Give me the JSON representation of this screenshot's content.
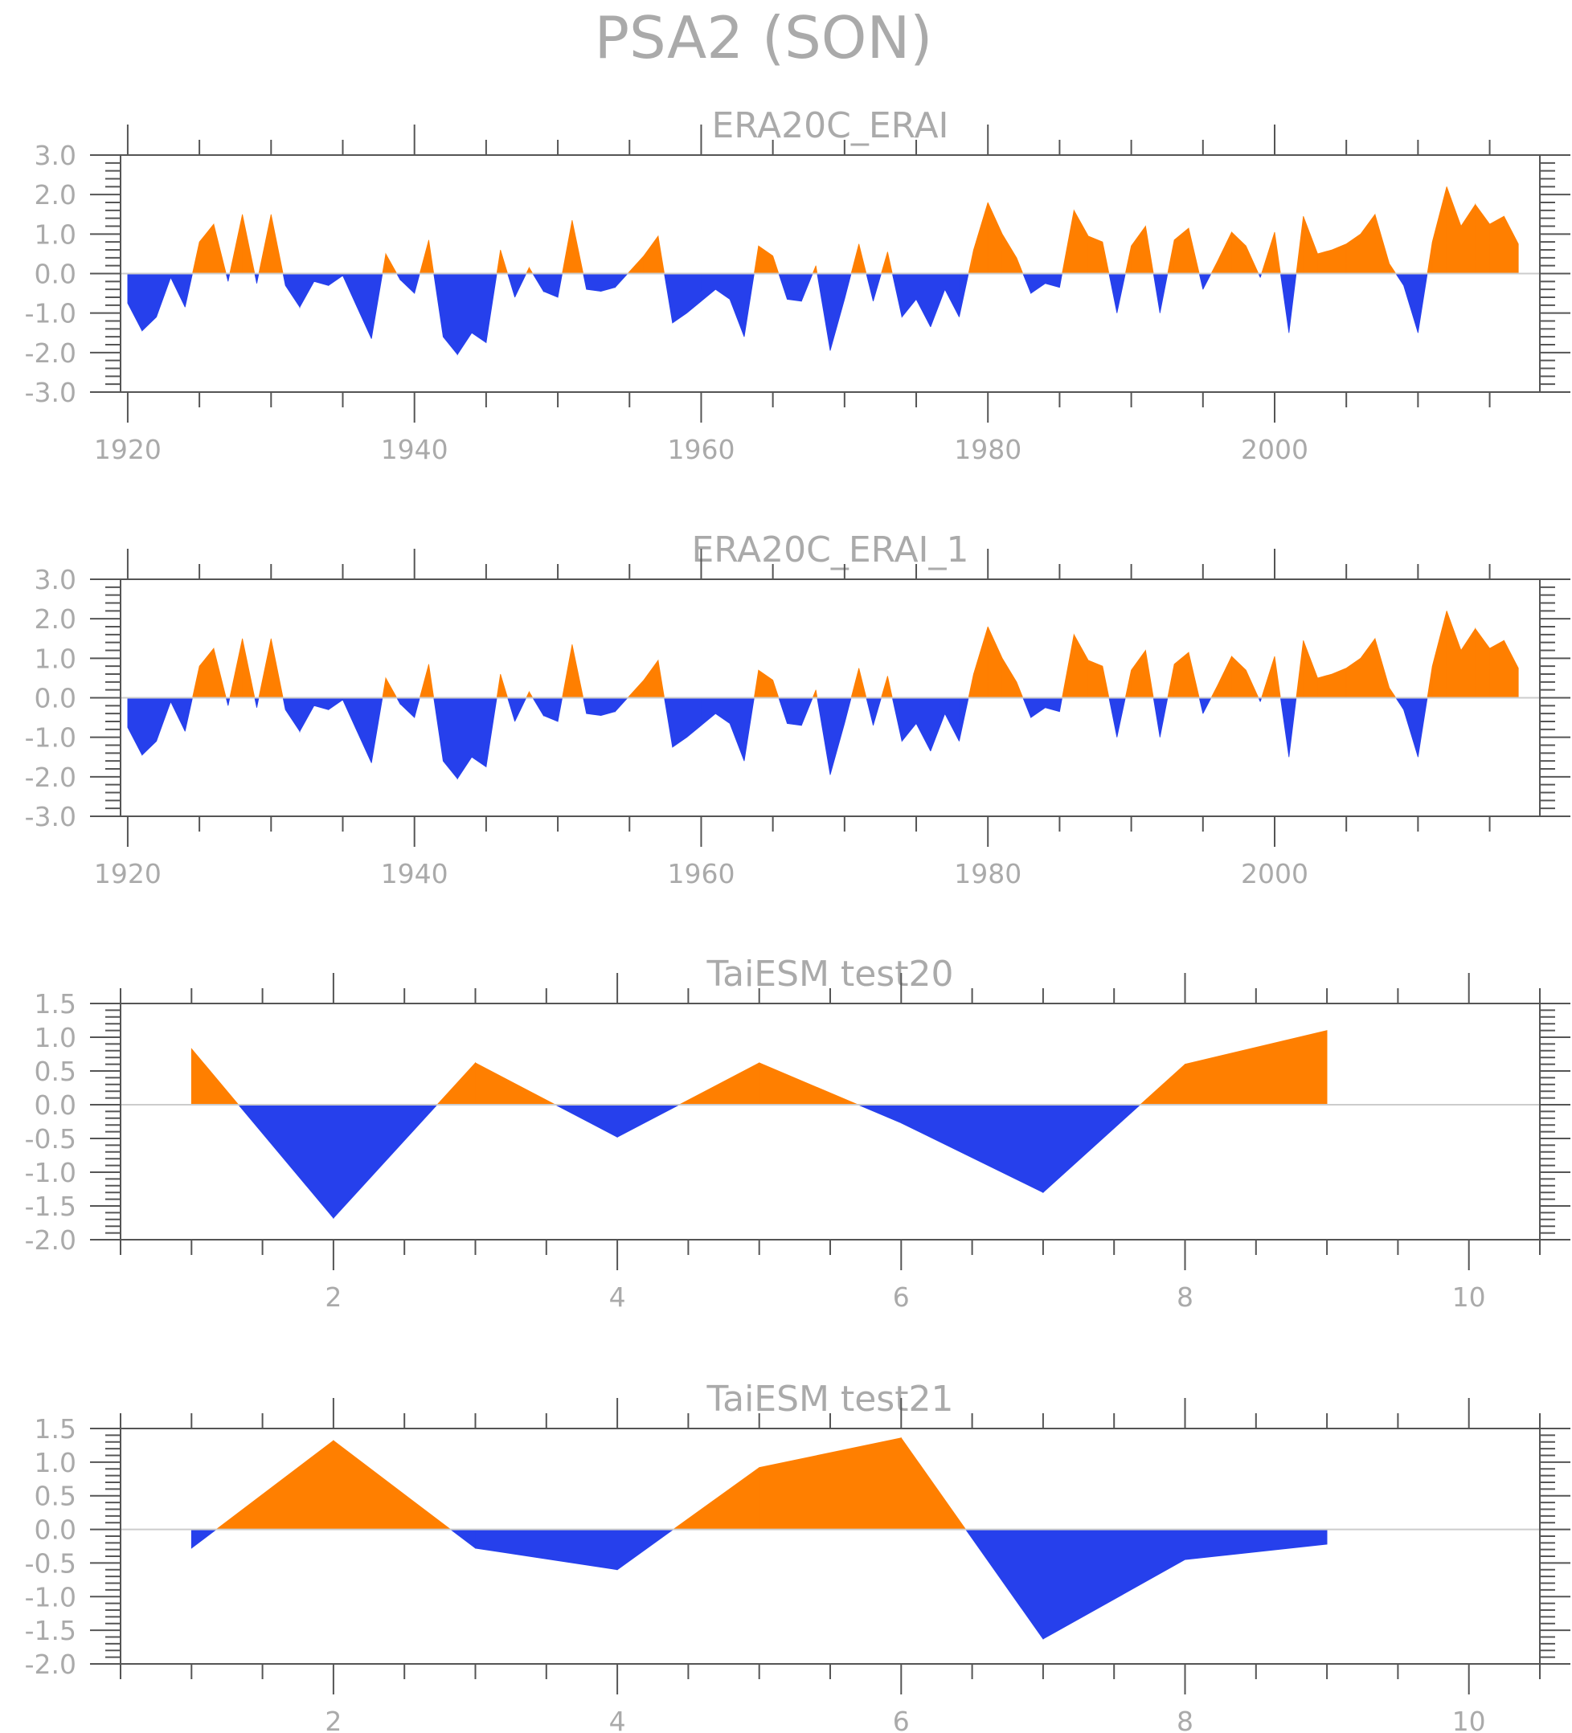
{
  "title": "PSA2 (SON)",
  "colors": {
    "positive": "#ff7f00",
    "negative": "#2640ec",
    "axis_text": "#aaaaaa",
    "frame": "#555555",
    "zero_line": "#cccccc"
  },
  "chart_data": [
    {
      "type": "area",
      "title": "ERA20C_ERAI",
      "xlim": [
        1919.5,
        2018.5
      ],
      "ylim": [
        -3.0,
        3.0
      ],
      "x_ticks": [
        1920,
        1940,
        1960,
        1980,
        2000
      ],
      "x_tick_labels": [
        "1920",
        "1940",
        "1960",
        "1980",
        "2000"
      ],
      "y_ticks": [
        3.0,
        2.0,
        1.0,
        0.0,
        -1.0,
        -2.0,
        -3.0
      ],
      "y_tick_labels": [
        "3.0",
        "2.0",
        "1.0",
        "0.0",
        "-1.0",
        "-2.0",
        "-3.0"
      ],
      "x_start": 1920,
      "values": [
        -0.75,
        -1.45,
        -1.1,
        -0.1,
        -0.85,
        0.8,
        1.25,
        -0.2,
        1.5,
        -0.25,
        1.5,
        -0.3,
        -0.85,
        -0.2,
        -0.3,
        -0.05,
        -0.85,
        -1.65,
        0.5,
        -0.15,
        -0.5,
        0.85,
        -1.6,
        -2.05,
        -1.5,
        -1.75,
        0.6,
        -0.6,
        0.15,
        -0.45,
        -0.6,
        1.35,
        -0.4,
        -0.45,
        -0.35,
        0.05,
        0.45,
        0.95,
        -1.25,
        -1.0,
        -0.7,
        -0.4,
        -0.65,
        -1.6,
        0.7,
        0.45,
        -0.65,
        -0.7,
        0.2,
        -1.95,
        -0.65,
        0.75,
        -0.7,
        0.55,
        -1.1,
        -0.65,
        -1.35,
        -0.4,
        -1.1,
        0.6,
        1.8,
        1.0,
        0.4,
        -0.5,
        -0.25,
        -0.35,
        1.6,
        0.95,
        0.8,
        -1.0,
        0.7,
        1.2,
        -1.0,
        0.85,
        1.15,
        -0.4,
        0.3,
        1.05,
        0.7,
        -0.1,
        1.05,
        -1.5,
        1.45,
        0.5,
        0.6,
        0.75,
        1.0,
        1.5,
        0.25,
        -0.3,
        -1.5,
        0.8,
        2.2,
        1.2,
        1.75,
        1.25,
        1.45,
        0.75
      ]
    },
    {
      "type": "area",
      "title": "ERA20C_ERAI_1",
      "xlim": [
        1919.5,
        2018.5
      ],
      "ylim": [
        -3.0,
        3.0
      ],
      "x_ticks": [
        1920,
        1940,
        1960,
        1980,
        2000
      ],
      "x_tick_labels": [
        "1920",
        "1940",
        "1960",
        "1980",
        "2000"
      ],
      "y_ticks": [
        3.0,
        2.0,
        1.0,
        0.0,
        -1.0,
        -2.0,
        -3.0
      ],
      "y_tick_labels": [
        "3.0",
        "2.0",
        "1.0",
        "0.0",
        "-1.0",
        "-2.0",
        "-3.0"
      ],
      "x_start": 1920,
      "values": [
        -0.75,
        -1.45,
        -1.1,
        -0.1,
        -0.85,
        0.8,
        1.25,
        -0.2,
        1.5,
        -0.25,
        1.5,
        -0.3,
        -0.85,
        -0.2,
        -0.3,
        -0.05,
        -0.85,
        -1.65,
        0.5,
        -0.15,
        -0.5,
        0.85,
        -1.6,
        -2.05,
        -1.5,
        -1.75,
        0.6,
        -0.6,
        0.15,
        -0.45,
        -0.6,
        1.35,
        -0.4,
        -0.45,
        -0.35,
        0.05,
        0.45,
        0.95,
        -1.25,
        -1.0,
        -0.7,
        -0.4,
        -0.65,
        -1.6,
        0.7,
        0.45,
        -0.65,
        -0.7,
        0.2,
        -1.95,
        -0.65,
        0.75,
        -0.7,
        0.55,
        -1.1,
        -0.65,
        -1.35,
        -0.4,
        -1.1,
        0.6,
        1.8,
        1.0,
        0.4,
        -0.5,
        -0.25,
        -0.35,
        1.6,
        0.95,
        0.8,
        -1.0,
        0.7,
        1.2,
        -1.0,
        0.85,
        1.15,
        -0.4,
        0.3,
        1.05,
        0.7,
        -0.1,
        1.05,
        -1.5,
        1.45,
        0.5,
        0.6,
        0.75,
        1.0,
        1.5,
        0.25,
        -0.3,
        -1.5,
        0.8,
        2.2,
        1.2,
        1.75,
        1.25,
        1.45,
        0.75
      ]
    },
    {
      "type": "area",
      "title": "TaiESM test20",
      "xlim": [
        0.5,
        10.5
      ],
      "ylim": [
        -2.0,
        1.5
      ],
      "x_ticks": [
        2,
        4,
        6,
        8,
        10
      ],
      "x_tick_labels": [
        "2",
        "4",
        "6",
        "8",
        "10"
      ],
      "y_ticks": [
        1.5,
        1.0,
        0.5,
        0.0,
        -0.5,
        -1.0,
        -1.5,
        -2.0
      ],
      "y_tick_labels": [
        "1.5",
        "1.0",
        "0.5",
        "0.0",
        "-0.5",
        "-1.0",
        "-1.5",
        "-2.0"
      ],
      "x_start": 1,
      "values": [
        0.83,
        -1.68,
        0.62,
        -0.48,
        0.62,
        -0.27,
        -1.3,
        0.6,
        1.1
      ]
    },
    {
      "type": "area",
      "title": "TaiESM test21",
      "xlim": [
        0.5,
        10.5
      ],
      "ylim": [
        -2.0,
        1.5
      ],
      "x_ticks": [
        2,
        4,
        6,
        8,
        10
      ],
      "x_tick_labels": [
        "2",
        "4",
        "6",
        "8",
        "10"
      ],
      "y_ticks": [
        1.5,
        1.0,
        0.5,
        0.0,
        -0.5,
        -1.0,
        -1.5,
        -2.0
      ],
      "y_tick_labels": [
        "1.5",
        "1.0",
        "0.5",
        "0.0",
        "-0.5",
        "-1.0",
        "-1.5",
        "-2.0"
      ],
      "x_start": 1,
      "values": [
        -0.28,
        1.32,
        -0.28,
        -0.6,
        0.92,
        1.36,
        -1.63,
        -0.45,
        -0.22
      ]
    }
  ]
}
